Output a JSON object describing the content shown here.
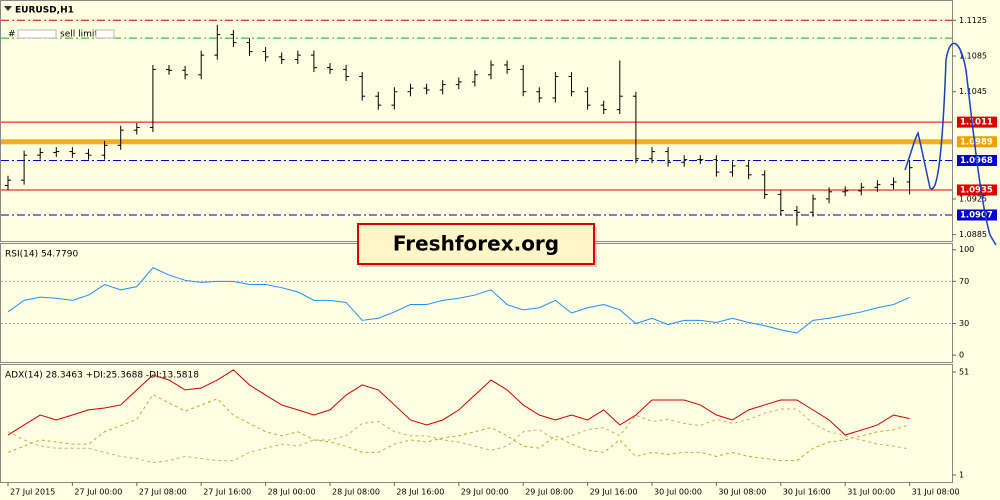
{
  "chart_data": [
    {
      "type": "ohlc",
      "title": "EURUSD,H1",
      "annotation": "sell limit",
      "watermark": "Freshforex.org",
      "color": "#000000",
      "categories": [
        "27 Jul 2015",
        null,
        null,
        null,
        "27 Jul 00:00",
        null,
        null,
        null,
        "27 Jul 08:00",
        null,
        null,
        null,
        "27 Jul 16:00",
        null,
        null,
        null,
        "28 Jul 00:00",
        null,
        null,
        null,
        "28 Jul 08:00",
        null,
        null,
        null,
        "28 Jul 16:00",
        null,
        null,
        null,
        "29 Jul 00:00",
        null,
        null,
        null,
        "29 Jul 08:00",
        null,
        null,
        null,
        "29 Jul 16:00",
        null,
        null,
        null,
        "30 Jul 00:00",
        null,
        null,
        null,
        "30 Jul 08:00",
        null,
        null,
        null,
        "30 Jul 16:00",
        null,
        null,
        null,
        "31 Jul 00:00",
        null,
        null,
        null,
        "31 Jul 08:00"
      ],
      "open": [
        1.094,
        1.0946,
        1.0974,
        1.0977,
        1.0978,
        1.0976,
        1.0974,
        1.0985,
        1.1002,
        1.1005,
        1.107,
        1.1069,
        1.1064,
        1.1086,
        1.1109,
        1.11,
        1.109,
        1.1084,
        1.1081,
        1.1086,
        1.1072,
        1.107,
        1.1062,
        1.104,
        1.103,
        1.1045,
        1.1049,
        1.1047,
        1.1053,
        1.1056,
        1.1064,
        1.1075,
        1.107,
        1.1045,
        1.1038,
        1.1062,
        1.1045,
        1.103,
        1.1025,
        1.104,
        1.097,
        1.0978,
        1.0966,
        1.0969,
        1.0969,
        1.0955,
        1.0962,
        1.0952,
        1.093,
        1.0912,
        1.091,
        1.0925,
        1.0933,
        1.0934,
        1.0938,
        1.0941,
        1.0944
      ],
      "high": [
        1.0951,
        1.0979,
        1.0982,
        1.0983,
        1.0983,
        1.0981,
        1.099,
        1.1007,
        1.101,
        1.1075,
        1.1075,
        1.1074,
        1.1091,
        1.112,
        1.1114,
        1.1105,
        1.1095,
        1.1089,
        1.1091,
        1.1091,
        1.1077,
        1.1075,
        1.1067,
        1.1045,
        1.105,
        1.1054,
        1.1054,
        1.1058,
        1.1061,
        1.1069,
        1.108,
        1.108,
        1.1075,
        1.105,
        1.1067,
        1.1067,
        1.105,
        1.1035,
        1.108,
        1.1045,
        1.0983,
        1.0983,
        1.0974,
        1.0974,
        1.0974,
        1.0967,
        1.0967,
        1.0957,
        1.0935,
        1.0917,
        1.093,
        1.0938,
        1.0939,
        1.0943,
        1.0946,
        1.0949,
        1.0968
      ],
      "low": [
        1.0935,
        1.0941,
        1.0969,
        1.0972,
        1.0971,
        1.0969,
        1.0969,
        1.098,
        1.0997,
        1.1,
        1.1064,
        1.1059,
        1.1059,
        1.1081,
        1.1095,
        1.1085,
        1.1079,
        1.1076,
        1.1076,
        1.1067,
        1.1065,
        1.1057,
        1.1035,
        1.1025,
        1.1025,
        1.104,
        1.1042,
        1.1042,
        1.1048,
        1.1051,
        1.1059,
        1.1065,
        1.104,
        1.1033,
        1.1033,
        1.104,
        1.1025,
        1.102,
        1.102,
        1.0965,
        1.0965,
        1.0961,
        1.0961,
        1.0964,
        1.095,
        1.095,
        1.0947,
        1.0925,
        1.0907,
        1.0895,
        1.0905,
        1.092,
        1.0928,
        1.0929,
        1.0933,
        1.0936,
        1.093
      ],
      "close": [
        1.0946,
        1.0974,
        1.0977,
        1.0978,
        1.0976,
        1.0974,
        1.0985,
        1.1002,
        1.1005,
        1.107,
        1.1069,
        1.1064,
        1.1086,
        1.1109,
        1.11,
        1.109,
        1.1084,
        1.1081,
        1.1086,
        1.1072,
        1.107,
        1.1062,
        1.104,
        1.103,
        1.1045,
        1.1049,
        1.1047,
        1.1053,
        1.1056,
        1.1064,
        1.1075,
        1.107,
        1.1045,
        1.1038,
        1.1062,
        1.1045,
        1.103,
        1.1025,
        1.104,
        1.097,
        1.0978,
        1.0966,
        1.0969,
        1.0969,
        1.0955,
        1.0962,
        1.0952,
        1.093,
        1.0912,
        1.091,
        1.0925,
        1.0933,
        1.0934,
        1.0938,
        1.0941,
        1.0944,
        1.096
      ],
      "ylim": [
        1.0879,
        1.1141
      ],
      "yticks": [
        1.1125,
        1.1085,
        1.1045,
        1.0925,
        1.0885
      ],
      "levels": [
        {
          "value": 1.1125,
          "color": "#cc0000",
          "style": "dashdot",
          "tag": false
        },
        {
          "value": 1.1105,
          "color": "#22aa22",
          "style": "dashdot",
          "tag": false
        },
        {
          "value": 1.1011,
          "color": "#dd0000",
          "style": "solid",
          "tag": true
        },
        {
          "value": 1.0989,
          "color": "#f0a000",
          "style": "thick",
          "tag": true
        },
        {
          "value": 1.0968,
          "color": "#0000cc",
          "style": "dashdot",
          "tag": true
        },
        {
          "value": 1.0935,
          "color": "#dd0000",
          "style": "solid",
          "tag": true
        },
        {
          "value": 1.0907,
          "color": "#0000cc",
          "style": "dashdot",
          "tag": true
        }
      ]
    },
    {
      "type": "line",
      "title": "RSI(14) 54.7790",
      "color": "#1e90ff",
      "values": [
        41,
        52,
        55,
        54,
        52,
        57,
        67,
        62,
        65,
        83,
        76,
        71,
        69,
        70,
        70,
        67,
        67,
        64,
        60,
        52,
        52,
        50,
        33,
        35,
        41,
        48,
        48,
        52,
        54,
        57,
        62,
        48,
        43,
        45,
        52,
        40,
        45,
        48,
        43,
        30,
        35,
        29,
        33,
        33,
        31,
        35,
        31,
        28,
        24,
        21,
        33,
        35,
        38,
        41,
        45,
        48,
        54.779
      ],
      "ylim": [
        -6.5,
        104.5
      ],
      "yticks": [
        100,
        70,
        30,
        0
      ],
      "levels": [
        70,
        30
      ]
    },
    {
      "type": "line",
      "title": "ADX(14) 28.3463 +DI:25.3688 -DI:13.5818",
      "series": [
        {
          "name": "ADX",
          "color": "#cc0000",
          "style": "solid",
          "values": [
            20.4,
            25.3,
            30.1,
            27.7,
            30.1,
            32.6,
            33.5,
            35.0,
            42.3,
            49.5,
            47.1,
            42.3,
            43.2,
            47.1,
            52.0,
            44.7,
            39.8,
            35.0,
            32.6,
            30.1,
            32.6,
            39.8,
            44.7,
            42.3,
            35.0,
            27.7,
            25.3,
            27.7,
            32.6,
            39.8,
            47.1,
            42.3,
            35.0,
            30.1,
            27.7,
            30.1,
            27.7,
            32.6,
            25.3,
            30.1,
            37.4,
            37.4,
            37.4,
            35.0,
            30.1,
            27.7,
            32.6,
            35.0,
            37.4,
            37.4,
            32.6,
            27.7,
            20.4,
            22.8,
            25.3,
            30.1,
            28.3463
          ]
        },
        {
          "name": "+DI",
          "color": "#b5b020",
          "style": "dashed",
          "values": [
            12,
            15,
            18,
            17,
            16,
            16,
            22,
            25,
            28,
            40,
            36,
            32,
            35,
            38,
            30,
            26,
            22,
            20,
            22,
            18,
            17,
            15,
            12,
            12,
            16,
            18,
            17,
            19,
            20,
            22,
            24,
            20,
            15,
            14,
            20,
            16,
            13,
            12,
            18,
            10,
            12,
            11,
            12,
            12,
            10,
            12,
            10,
            9,
            8,
            8,
            14,
            17,
            18,
            20,
            22,
            23,
            25.3688
          ]
        },
        {
          "name": "-DI",
          "color": "#c8b070",
          "style": "dashed",
          "values": [
            22,
            18,
            15,
            14,
            14,
            14,
            12,
            10,
            9,
            7,
            8,
            10,
            9,
            8,
            8,
            12,
            14,
            16,
            15,
            18,
            18,
            20,
            26,
            27,
            22,
            20,
            20,
            18,
            17,
            15,
            13,
            15,
            22,
            23,
            18,
            20,
            23,
            24,
            20,
            30,
            27,
            28,
            26,
            25,
            28,
            26,
            28,
            31,
            33,
            33,
            26,
            22,
            20,
            18,
            16,
            15,
            13.5818
          ]
        }
      ],
      "ylim": [
        -2.4,
        53.9
      ],
      "yticks": [
        51,
        1
      ]
    }
  ]
}
